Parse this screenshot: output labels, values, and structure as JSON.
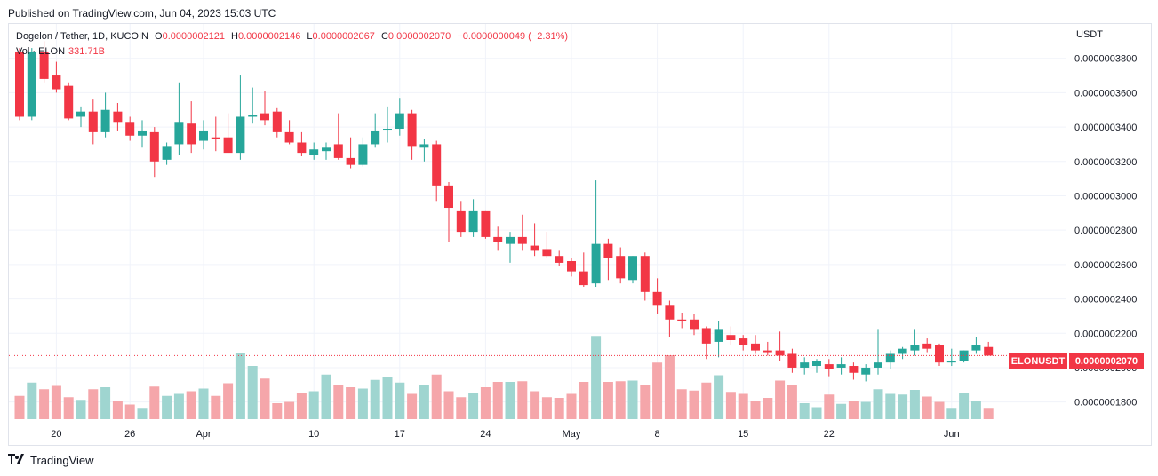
{
  "header": {
    "published": "Published on TradingView.com, Jun 04, 2023 15:03 UTC"
  },
  "legend": {
    "symbol": "Dogelon / Tether, 1D, KUCOIN",
    "open_label": "O",
    "open": "0.0000002121",
    "high_label": "H",
    "high": "0.0000002146",
    "low_label": "L",
    "low": "0.0000002067",
    "close_label": "C",
    "close": "0.0000002070",
    "change": "−0.0000000049 (−2.31%)",
    "vol_label": "Vol · ELON",
    "vol_value": "331.71B"
  },
  "currency": "USDT",
  "last_price_tag": {
    "symbol": "ELONUSDT",
    "price": "0.0000002070"
  },
  "footer": {
    "brand": "TradingView"
  },
  "colors": {
    "up": "#26a69a",
    "down": "#f23645",
    "up_vol": "#9fd5d0",
    "down_vol": "#f5a6aa"
  },
  "chart_data": {
    "type": "candlestick",
    "ylim": [
      1.7e-07,
      4e-07
    ],
    "y_ticks": [
      {
        "value": 3.8e-07,
        "label": "0.0000003800"
      },
      {
        "value": 3.6e-07,
        "label": "0.0000003600"
      },
      {
        "value": 3.4e-07,
        "label": "0.0000003400"
      },
      {
        "value": 3.2e-07,
        "label": "0.0000003200"
      },
      {
        "value": 3e-07,
        "label": "0.0000003000"
      },
      {
        "value": 2.8e-07,
        "label": "0.0000002800"
      },
      {
        "value": 2.6e-07,
        "label": "0.0000002600"
      },
      {
        "value": 2.4e-07,
        "label": "0.0000002400"
      },
      {
        "value": 2.2e-07,
        "label": "0.0000002200"
      },
      {
        "value": 2e-07,
        "label": "0.0000002000"
      },
      {
        "value": 1.8e-07,
        "label": "0.0000001800"
      }
    ],
    "x_ticks": [
      {
        "index": 3,
        "label": "20"
      },
      {
        "index": 9,
        "label": "26"
      },
      {
        "index": 15,
        "label": "Apr"
      },
      {
        "index": 24,
        "label": "10"
      },
      {
        "index": 31,
        "label": "17"
      },
      {
        "index": 38,
        "label": "24"
      },
      {
        "index": 45,
        "label": "May"
      },
      {
        "index": 52,
        "label": "8"
      },
      {
        "index": 59,
        "label": "15"
      },
      {
        "index": 66,
        "label": "22"
      },
      {
        "index": 76,
        "label": "Jun"
      }
    ],
    "ohlc": [
      [
        3.84e-07,
        3.86e-07,
        3.44e-07,
        3.46e-07
      ],
      [
        3.46e-07,
        3.86e-07,
        3.44e-07,
        3.84e-07
      ],
      [
        3.84e-07,
        3.9e-07,
        3.66e-07,
        3.68e-07
      ],
      [
        3.7e-07,
        3.78e-07,
        3.6e-07,
        3.62e-07
      ],
      [
        3.64e-07,
        3.66e-07,
        3.44e-07,
        3.45e-07
      ],
      [
        3.46e-07,
        3.52e-07,
        3.4e-07,
        3.49e-07
      ],
      [
        3.49e-07,
        3.56e-07,
        3.3e-07,
        3.37e-07
      ],
      [
        3.37e-07,
        3.6e-07,
        3.34e-07,
        3.5e-07
      ],
      [
        3.49e-07,
        3.54e-07,
        3.38e-07,
        3.43e-07
      ],
      [
        3.43e-07,
        3.46e-07,
        3.32e-07,
        3.35e-07
      ],
      [
        3.35e-07,
        3.44e-07,
        3.28e-07,
        3.38e-07
      ],
      [
        3.37e-07,
        3.4e-07,
        3.11e-07,
        3.2e-07
      ],
      [
        3.21e-07,
        3.31e-07,
        3.18e-07,
        3.29e-07
      ],
      [
        3.3e-07,
        3.66e-07,
        3.24e-07,
        3.43e-07
      ],
      [
        3.42e-07,
        3.55e-07,
        3.25e-07,
        3.3e-07
      ],
      [
        3.32e-07,
        3.44e-07,
        3.27e-07,
        3.38e-07
      ],
      [
        3.34e-07,
        3.46e-07,
        3.26e-07,
        3.33e-07
      ],
      [
        3.34e-07,
        3.48e-07,
        3.25e-07,
        3.25e-07
      ],
      [
        3.25e-07,
        3.7e-07,
        3.21e-07,
        3.46e-07
      ],
      [
        3.46e-07,
        3.63e-07,
        3.42e-07,
        3.47e-07
      ],
      [
        3.48e-07,
        3.61e-07,
        3.41e-07,
        3.44e-07
      ],
      [
        3.49e-07,
        3.51e-07,
        3.34e-07,
        3.37e-07
      ],
      [
        3.37e-07,
        3.44e-07,
        3.3e-07,
        3.31e-07
      ],
      [
        3.31e-07,
        3.37e-07,
        3.23e-07,
        3.25e-07
      ],
      [
        3.24e-07,
        3.31e-07,
        3.21e-07,
        3.27e-07
      ],
      [
        3.26e-07,
        3.31e-07,
        3.21e-07,
        3.28e-07
      ],
      [
        3.3e-07,
        3.48e-07,
        3.21e-07,
        3.22e-07
      ],
      [
        3.22e-07,
        3.34e-07,
        3.16e-07,
        3.18e-07
      ],
      [
        3.18e-07,
        3.34e-07,
        3.17e-07,
        3.3e-07
      ],
      [
        3.3e-07,
        3.48e-07,
        3.28e-07,
        3.38e-07
      ],
      [
        3.39e-07,
        3.52e-07,
        3.31e-07,
        3.39e-07
      ],
      [
        3.39e-07,
        3.57e-07,
        3.35e-07,
        3.48e-07
      ],
      [
        3.48e-07,
        3.5e-07,
        3.21e-07,
        3.29e-07
      ],
      [
        3.28e-07,
        3.33e-07,
        3.2e-07,
        3.3e-07
      ],
      [
        3.3e-07,
        3.32e-07,
        2.97e-07,
        3.06e-07
      ],
      [
        3.06e-07,
        3.08e-07,
        2.73e-07,
        2.93e-07
      ],
      [
        2.91e-07,
        2.97e-07,
        2.76e-07,
        2.79e-07
      ],
      [
        2.79e-07,
        2.98e-07,
        2.76e-07,
        2.91e-07
      ],
      [
        2.91e-07,
        2.91e-07,
        2.75e-07,
        2.76e-07
      ],
      [
        2.76e-07,
        2.82e-07,
        2.68e-07,
        2.73e-07
      ],
      [
        2.72e-07,
        2.79e-07,
        2.61e-07,
        2.76e-07
      ],
      [
        2.76e-07,
        2.89e-07,
        2.68e-07,
        2.72e-07
      ],
      [
        2.71e-07,
        2.84e-07,
        2.65e-07,
        2.68e-07
      ],
      [
        2.69e-07,
        2.79e-07,
        2.64e-07,
        2.65e-07
      ],
      [
        2.65e-07,
        2.68e-07,
        2.59e-07,
        2.61e-07
      ],
      [
        2.62e-07,
        2.64e-07,
        2.53e-07,
        2.56e-07
      ],
      [
        2.56e-07,
        2.67e-07,
        2.47e-07,
        2.48e-07
      ],
      [
        2.49e-07,
        3.09e-07,
        2.47e-07,
        2.72e-07
      ],
      [
        2.72e-07,
        2.75e-07,
        2.51e-07,
        2.64e-07
      ],
      [
        2.65e-07,
        2.7e-07,
        2.49e-07,
        2.52e-07
      ],
      [
        2.51e-07,
        2.65e-07,
        2.49e-07,
        2.65e-07
      ],
      [
        2.65e-07,
        2.67e-07,
        2.39e-07,
        2.44e-07
      ],
      [
        2.44e-07,
        2.52e-07,
        2.31e-07,
        2.36e-07
      ],
      [
        2.36e-07,
        2.39e-07,
        2.18e-07,
        2.28e-07
      ],
      [
        2.28e-07,
        2.32e-07,
        2.23e-07,
        2.27e-07
      ],
      [
        2.28e-07,
        2.31e-07,
        2.19e-07,
        2.22e-07
      ],
      [
        2.23e-07,
        2.24e-07,
        2.05e-07,
        2.14e-07
      ],
      [
        2.15e-07,
        2.27e-07,
        2.06e-07,
        2.22e-07
      ],
      [
        2.19e-07,
        2.24e-07,
        2.13e-07,
        2.16e-07
      ],
      [
        2.17e-07,
        2.19e-07,
        2.1e-07,
        2.13e-07
      ],
      [
        2.14e-07,
        2.19e-07,
        2.08e-07,
        2.1e-07
      ],
      [
        2.1e-07,
        2.15e-07,
        2.07e-07,
        2.09e-07
      ],
      [
        2.1e-07,
        2.21e-07,
        2.04e-07,
        2.07e-07
      ],
      [
        2.08e-07,
        2.11e-07,
        1.97e-07,
        2e-07
      ],
      [
        2e-07,
        2.06e-07,
        1.96e-07,
        2.03e-07
      ],
      [
        2.01e-07,
        2.05e-07,
        1.97e-07,
        2.04e-07
      ],
      [
        2.02e-07,
        2.05e-07,
        1.95e-07,
        1.99e-07
      ],
      [
        2e-07,
        2.06e-07,
        1.96e-07,
        2.02e-07
      ],
      [
        2.01e-07,
        2.03e-07,
        1.93e-07,
        1.97e-07
      ],
      [
        1.96e-07,
        2.02e-07,
        1.92e-07,
        2e-07
      ],
      [
        2e-07,
        2.22e-07,
        1.96e-07,
        2.03e-07
      ],
      [
        2.03e-07,
        2.1e-07,
        1.99e-07,
        2.08e-07
      ],
      [
        2.08e-07,
        2.12e-07,
        2.05e-07,
        2.11e-07
      ],
      [
        2.1e-07,
        2.22e-07,
        2.07e-07,
        2.13e-07
      ],
      [
        2.14e-07,
        2.17e-07,
        2.09e-07,
        2.11e-07
      ],
      [
        2.13e-07,
        2.14e-07,
        2.01e-07,
        2.03e-07
      ],
      [
        2.03e-07,
        2.11e-07,
        2.01e-07,
        2.04e-07
      ],
      [
        2.04e-07,
        2.1e-07,
        2.03e-07,
        2.1e-07
      ],
      [
        2.1e-07,
        2.18e-07,
        2.08e-07,
        2.13e-07
      ],
      [
        2.12e-07,
        2.15e-07,
        2.07e-07,
        2.07e-07
      ]
    ],
    "volume_rel": [
      0.35,
      0.55,
      0.45,
      0.5,
      0.33,
      0.29,
      0.45,
      0.48,
      0.28,
      0.22,
      0.17,
      0.49,
      0.35,
      0.38,
      0.42,
      0.46,
      0.35,
      0.54,
      1.0,
      0.8,
      0.61,
      0.24,
      0.26,
      0.4,
      0.42,
      0.67,
      0.52,
      0.48,
      0.46,
      0.59,
      0.63,
      0.55,
      0.38,
      0.52,
      0.67,
      0.42,
      0.33,
      0.4,
      0.48,
      0.56,
      0.56,
      0.57,
      0.42,
      0.33,
      0.32,
      0.38,
      0.56,
      1.25,
      0.56,
      0.57,
      0.58,
      0.51,
      0.85,
      0.96,
      0.45,
      0.43,
      0.55,
      0.66,
      0.41,
      0.38,
      0.28,
      0.32,
      0.58,
      0.51,
      0.24,
      0.18,
      0.37,
      0.23,
      0.28,
      0.26,
      0.45,
      0.38,
      0.37,
      0.44,
      0.34,
      0.26,
      0.17,
      0.39,
      0.28,
      0.17
    ]
  }
}
